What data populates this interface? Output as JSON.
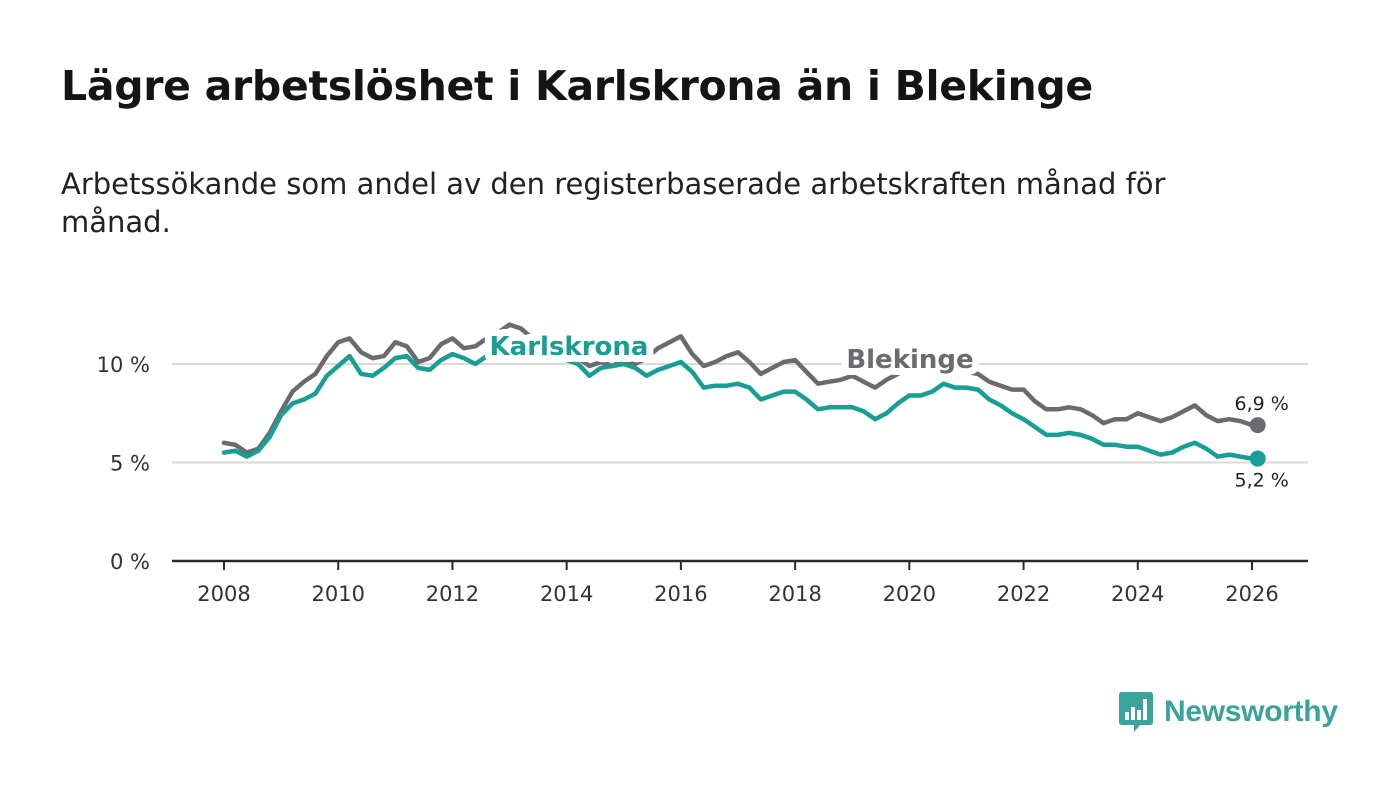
{
  "title": "Lägre arbetslöshet i Karlskrona än i Blekinge",
  "subtitle": "Arbetssökande som andel av den registerbaserade arbetskraften månad för månad.",
  "brand": {
    "name": "Newsworthy",
    "color": "#3aa39b"
  },
  "chart_data": {
    "type": "line",
    "title": "Lägre arbetslöshet i Karlskrona än i Blekinge",
    "xlabel": "",
    "ylabel": "",
    "xlim": [
      2007.0,
      2027.2
    ],
    "ylim": [
      0,
      12.5
    ],
    "grid": true,
    "x_ticks": [
      2008,
      2010,
      2012,
      2014,
      2016,
      2018,
      2020,
      2022,
      2024,
      2026
    ],
    "x_tick_labels": [
      "2008",
      "2010",
      "2012",
      "2014",
      "2016",
      "2018",
      "2020",
      "2022",
      "2024",
      "2026"
    ],
    "y_ticks": [
      0,
      5,
      10
    ],
    "y_tick_labels": [
      "0 %",
      "5 %",
      "10 %"
    ],
    "series": [
      {
        "name": "Blekinge",
        "color": "#6c6a6e",
        "end_label": "6,9 %",
        "points": [
          [
            2008.0,
            6.0
          ],
          [
            2008.2,
            5.9
          ],
          [
            2008.4,
            5.5
          ],
          [
            2008.6,
            5.7
          ],
          [
            2008.8,
            6.5
          ],
          [
            2009.0,
            7.6
          ],
          [
            2009.2,
            8.6
          ],
          [
            2009.4,
            9.1
          ],
          [
            2009.6,
            9.5
          ],
          [
            2009.8,
            10.4
          ],
          [
            2010.0,
            11.1
          ],
          [
            2010.2,
            11.3
          ],
          [
            2010.4,
            10.6
          ],
          [
            2010.6,
            10.3
          ],
          [
            2010.8,
            10.4
          ],
          [
            2011.0,
            11.1
          ],
          [
            2011.2,
            10.9
          ],
          [
            2011.4,
            10.1
          ],
          [
            2011.6,
            10.3
          ],
          [
            2011.8,
            11.0
          ],
          [
            2012.0,
            11.3
          ],
          [
            2012.2,
            10.8
          ],
          [
            2012.4,
            10.9
          ],
          [
            2012.6,
            11.3
          ],
          [
            2012.8,
            11.6
          ],
          [
            2013.0,
            12.0
          ],
          [
            2013.2,
            11.8
          ],
          [
            2013.4,
            11.3
          ],
          [
            2013.6,
            11.5
          ],
          [
            2013.8,
            11.4
          ],
          [
            2014.0,
            10.9
          ],
          [
            2014.2,
            10.3
          ],
          [
            2014.4,
            9.9
          ],
          [
            2014.6,
            10.1
          ],
          [
            2014.8,
            9.9
          ],
          [
            2015.0,
            10.2
          ],
          [
            2015.2,
            10.0
          ],
          [
            2015.4,
            10.3
          ],
          [
            2015.6,
            10.8
          ],
          [
            2015.8,
            11.1
          ],
          [
            2016.0,
            11.4
          ],
          [
            2016.2,
            10.5
          ],
          [
            2016.4,
            9.9
          ],
          [
            2016.6,
            10.1
          ],
          [
            2016.8,
            10.4
          ],
          [
            2017.0,
            10.6
          ],
          [
            2017.2,
            10.1
          ],
          [
            2017.4,
            9.5
          ],
          [
            2017.6,
            9.8
          ],
          [
            2017.8,
            10.1
          ],
          [
            2018.0,
            10.2
          ],
          [
            2018.2,
            9.6
          ],
          [
            2018.4,
            9.0
          ],
          [
            2018.6,
            9.1
          ],
          [
            2018.8,
            9.2
          ],
          [
            2019.0,
            9.4
          ],
          [
            2019.2,
            9.1
          ],
          [
            2019.4,
            8.8
          ],
          [
            2019.6,
            9.2
          ],
          [
            2019.8,
            9.5
          ],
          [
            2020.0,
            9.8
          ],
          [
            2020.2,
            10.0
          ],
          [
            2020.4,
            10.1
          ],
          [
            2020.6,
            9.9
          ],
          [
            2020.8,
            9.7
          ],
          [
            2021.0,
            9.6
          ],
          [
            2021.2,
            9.5
          ],
          [
            2021.4,
            9.1
          ],
          [
            2021.6,
            8.9
          ],
          [
            2021.8,
            8.7
          ],
          [
            2022.0,
            8.7
          ],
          [
            2022.2,
            8.1
          ],
          [
            2022.4,
            7.7
          ],
          [
            2022.6,
            7.7
          ],
          [
            2022.8,
            7.8
          ],
          [
            2023.0,
            7.7
          ],
          [
            2023.2,
            7.4
          ],
          [
            2023.4,
            7.0
          ],
          [
            2023.6,
            7.2
          ],
          [
            2023.8,
            7.2
          ],
          [
            2024.0,
            7.5
          ],
          [
            2024.2,
            7.3
          ],
          [
            2024.4,
            7.1
          ],
          [
            2024.6,
            7.3
          ],
          [
            2024.8,
            7.6
          ],
          [
            2025.0,
            7.9
          ],
          [
            2025.2,
            7.4
          ],
          [
            2025.4,
            7.1
          ],
          [
            2025.6,
            7.2
          ],
          [
            2025.8,
            7.1
          ],
          [
            2026.0,
            6.9
          ],
          [
            2026.1,
            6.9
          ]
        ]
      },
      {
        "name": "Karlskrona",
        "color": "#189e94",
        "end_label": "5,2 %",
        "points": [
          [
            2008.0,
            5.5
          ],
          [
            2008.2,
            5.6
          ],
          [
            2008.4,
            5.3
          ],
          [
            2008.6,
            5.6
          ],
          [
            2008.8,
            6.3
          ],
          [
            2009.0,
            7.4
          ],
          [
            2009.2,
            8.0
          ],
          [
            2009.4,
            8.2
          ],
          [
            2009.6,
            8.5
          ],
          [
            2009.8,
            9.4
          ],
          [
            2010.0,
            9.9
          ],
          [
            2010.2,
            10.4
          ],
          [
            2010.4,
            9.5
          ],
          [
            2010.6,
            9.4
          ],
          [
            2010.8,
            9.8
          ],
          [
            2011.0,
            10.3
          ],
          [
            2011.2,
            10.4
          ],
          [
            2011.4,
            9.8
          ],
          [
            2011.6,
            9.7
          ],
          [
            2011.8,
            10.2
          ],
          [
            2012.0,
            10.5
          ],
          [
            2012.2,
            10.3
          ],
          [
            2012.4,
            10.0
          ],
          [
            2012.6,
            10.4
          ],
          [
            2012.8,
            10.8
          ],
          [
            2013.0,
            10.7
          ],
          [
            2013.2,
            10.6
          ],
          [
            2013.4,
            10.5
          ],
          [
            2013.6,
            10.6
          ],
          [
            2013.8,
            10.4
          ],
          [
            2014.0,
            10.2
          ],
          [
            2014.2,
            10.0
          ],
          [
            2014.4,
            9.4
          ],
          [
            2014.6,
            9.8
          ],
          [
            2014.8,
            9.9
          ],
          [
            2015.0,
            10.0
          ],
          [
            2015.2,
            9.8
          ],
          [
            2015.4,
            9.4
          ],
          [
            2015.6,
            9.7
          ],
          [
            2015.8,
            9.9
          ],
          [
            2016.0,
            10.1
          ],
          [
            2016.2,
            9.6
          ],
          [
            2016.4,
            8.8
          ],
          [
            2016.6,
            8.9
          ],
          [
            2016.8,
            8.9
          ],
          [
            2017.0,
            9.0
          ],
          [
            2017.2,
            8.8
          ],
          [
            2017.4,
            8.2
          ],
          [
            2017.6,
            8.4
          ],
          [
            2017.8,
            8.6
          ],
          [
            2018.0,
            8.6
          ],
          [
            2018.2,
            8.2
          ],
          [
            2018.4,
            7.7
          ],
          [
            2018.6,
            7.8
          ],
          [
            2018.8,
            7.8
          ],
          [
            2019.0,
            7.8
          ],
          [
            2019.2,
            7.6
          ],
          [
            2019.4,
            7.2
          ],
          [
            2019.6,
            7.5
          ],
          [
            2019.8,
            8.0
          ],
          [
            2020.0,
            8.4
          ],
          [
            2020.2,
            8.4
          ],
          [
            2020.4,
            8.6
          ],
          [
            2020.6,
            9.0
          ],
          [
            2020.8,
            8.8
          ],
          [
            2021.0,
            8.8
          ],
          [
            2021.2,
            8.7
          ],
          [
            2021.4,
            8.2
          ],
          [
            2021.6,
            7.9
          ],
          [
            2021.8,
            7.5
          ],
          [
            2022.0,
            7.2
          ],
          [
            2022.2,
            6.8
          ],
          [
            2022.4,
            6.4
          ],
          [
            2022.6,
            6.4
          ],
          [
            2022.8,
            6.5
          ],
          [
            2023.0,
            6.4
          ],
          [
            2023.2,
            6.2
          ],
          [
            2023.4,
            5.9
          ],
          [
            2023.6,
            5.9
          ],
          [
            2023.8,
            5.8
          ],
          [
            2024.0,
            5.8
          ],
          [
            2024.2,
            5.6
          ],
          [
            2024.4,
            5.4
          ],
          [
            2024.6,
            5.5
          ],
          [
            2024.8,
            5.8
          ],
          [
            2025.0,
            6.0
          ],
          [
            2025.2,
            5.7
          ],
          [
            2025.4,
            5.3
          ],
          [
            2025.6,
            5.4
          ],
          [
            2025.8,
            5.3
          ],
          [
            2026.0,
            5.2
          ],
          [
            2026.1,
            5.2
          ]
        ]
      }
    ]
  }
}
